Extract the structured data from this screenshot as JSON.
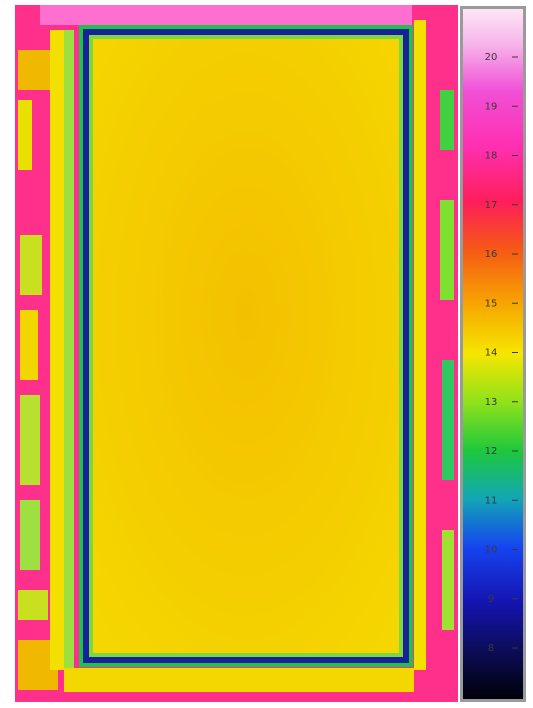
{
  "colorbar": {
    "ticks": [
      20,
      19,
      18,
      17,
      16,
      15,
      14,
      13,
      12,
      11,
      10,
      9,
      8
    ]
  }
}
